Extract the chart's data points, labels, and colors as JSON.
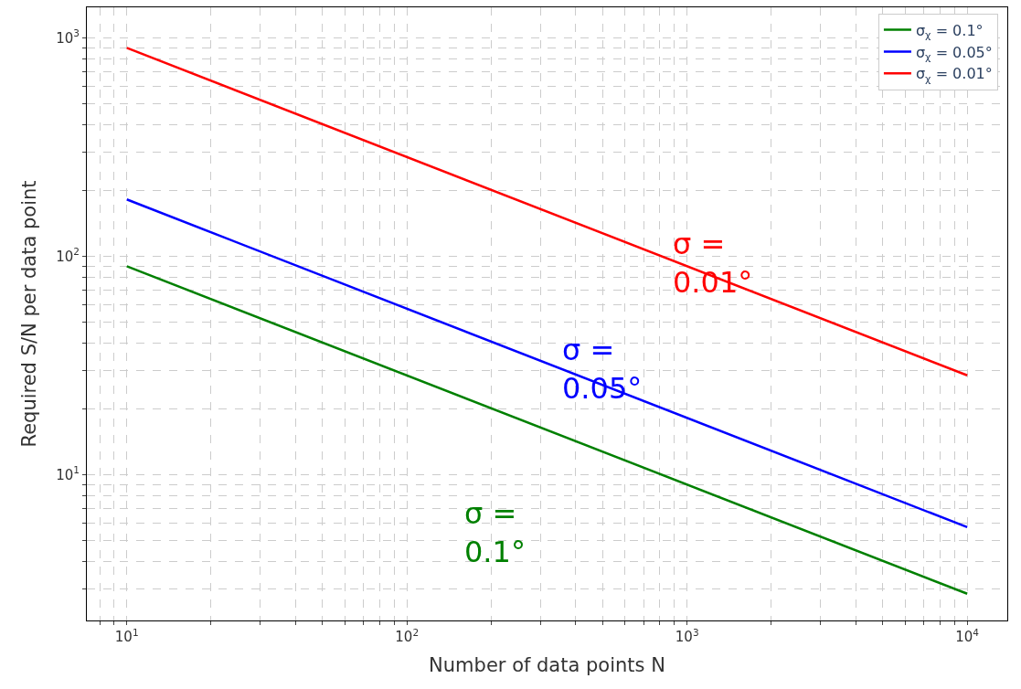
{
  "chart_data": {
    "type": "line",
    "xlabel": "Number of data points N",
    "ylabel": "Required S/N per data point",
    "log": "xy",
    "grid": true,
    "legend": "top right",
    "line_style": "solid",
    "marker": "none",
    "x": [
      10,
      10000
    ],
    "series": [
      {
        "name": "σ$_{χ}$ = 0.1°",
        "color": "#008000",
        "values": [
          90,
          2.85
        ]
      },
      {
        "name": "σ$_{χ}$ = 0.05°",
        "color": "#0000ff",
        "values": [
          182,
          5.75
        ]
      },
      {
        "name": "σ$_{χ}$ = 0.01°",
        "color": "#ff0000",
        "values": [
          900,
          28.5
        ]
      }
    ],
    "annotations": [
      "σ =\n0.1°",
      "σ =\n0.05°",
      "σ =\n0.01°"
    ],
    "xlim": [
      7.2,
      13900
    ],
    "ylim": [
      2.15,
      1380
    ],
    "xticks": [
      {
        "value": 8,
        "label": null
      },
      {
        "value": 9,
        "label": null
      },
      {
        "value": 10,
        "label": "10$^{1}$"
      },
      {
        "value": 20,
        "label": null
      },
      {
        "value": 30,
        "label": null
      },
      {
        "value": 40,
        "label": null
      },
      {
        "value": 50,
        "label": null
      },
      {
        "value": 60,
        "label": null
      },
      {
        "value": 70,
        "label": null
      },
      {
        "value": 80,
        "label": null
      },
      {
        "value": 90,
        "label": null
      },
      {
        "value": 100,
        "label": "10$^{2}$"
      },
      {
        "value": 200,
        "label": null
      },
      {
        "value": 300,
        "label": null
      },
      {
        "value": 400,
        "label": null
      },
      {
        "value": 500,
        "label": null
      },
      {
        "value": 600,
        "label": null
      },
      {
        "value": 700,
        "label": null
      },
      {
        "value": 800,
        "label": null
      },
      {
        "value": 900,
        "label": null
      },
      {
        "value": 1000,
        "label": "10$^{3}$"
      },
      {
        "value": 2000,
        "label": null
      },
      {
        "value": 3000,
        "label": null
      },
      {
        "value": 4000,
        "label": null
      },
      {
        "value": 5000,
        "label": null
      },
      {
        "value": 6000,
        "label": null
      },
      {
        "value": 7000,
        "label": null
      },
      {
        "value": 8000,
        "label": null
      },
      {
        "value": 9000,
        "label": null
      },
      {
        "value": 10000,
        "label": "10$^{4}$"
      }
    ],
    "yticks": [
      {
        "value": 3,
        "label": null
      },
      {
        "value": 4,
        "label": null
      },
      {
        "value": 5,
        "label": null
      },
      {
        "value": 6,
        "label": null
      },
      {
        "value": 7,
        "label": null
      },
      {
        "value": 8,
        "label": null
      },
      {
        "value": 9,
        "label": null
      },
      {
        "value": 10,
        "label": "10$^{1}$"
      },
      {
        "value": 20,
        "label": null
      },
      {
        "value": 30,
        "label": null
      },
      {
        "value": 40,
        "label": null
      },
      {
        "value": 50,
        "label": null
      },
      {
        "value": 60,
        "label": null
      },
      {
        "value": 70,
        "label": null
      },
      {
        "value": 80,
        "label": null
      },
      {
        "value": 90,
        "label": null
      },
      {
        "value": 100,
        "label": "10$^{2}$"
      },
      {
        "value": 200,
        "label": null
      },
      {
        "value": 300,
        "label": null
      },
      {
        "value": 400,
        "label": null
      },
      {
        "value": 500,
        "label": null
      },
      {
        "value": 600,
        "label": null
      },
      {
        "value": 700,
        "label": null
      },
      {
        "value": 800,
        "label": null
      },
      {
        "value": 900,
        "label": null
      },
      {
        "value": 1000,
        "label": "10$^{3}$"
      }
    ]
  }
}
